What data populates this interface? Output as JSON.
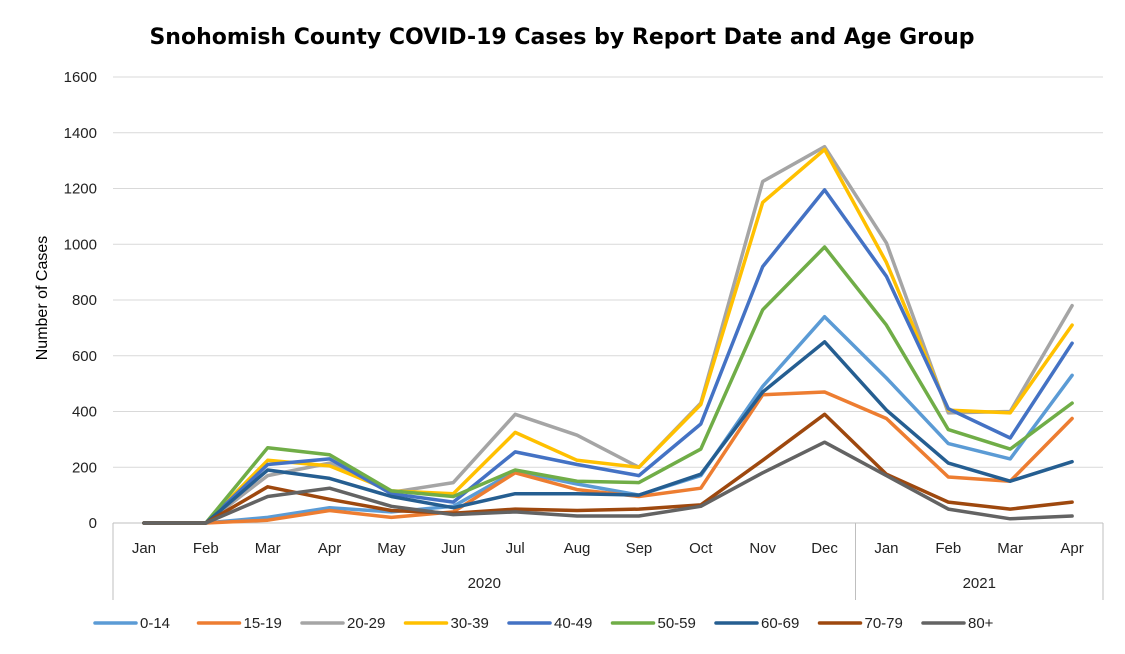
{
  "chart_data": {
    "type": "line",
    "title": "Snohomish County COVID-19 Cases by Report Date and Age Group",
    "xlabel": "",
    "ylabel": "Number of Cases",
    "ylim": [
      0,
      1600
    ],
    "yticks": [
      0,
      200,
      400,
      600,
      800,
      1000,
      1200,
      1400,
      1600
    ],
    "grid": true,
    "legend_position": "bottom",
    "categories": [
      "Jan",
      "Feb",
      "Mar",
      "Apr",
      "May",
      "Jun",
      "Jul",
      "Aug",
      "Sep",
      "Oct",
      "Nov",
      "Dec",
      "Jan",
      "Feb",
      "Mar",
      "Apr"
    ],
    "year_groups": [
      {
        "label": "2020",
        "start": 0,
        "end": 11
      },
      {
        "label": "2021",
        "start": 12,
        "end": 15
      }
    ],
    "series": [
      {
        "name": "0-14",
        "color": "#5B9BD5",
        "values": [
          0,
          0,
          20,
          55,
          40,
          60,
          185,
          140,
          100,
          170,
          490,
          740,
          520,
          285,
          230,
          530
        ]
      },
      {
        "name": "15-19",
        "color": "#ED7D31",
        "values": [
          0,
          0,
          10,
          45,
          20,
          40,
          180,
          120,
          95,
          125,
          460,
          470,
          375,
          165,
          150,
          375
        ]
      },
      {
        "name": "20-29",
        "color": "#A5A5A5",
        "values": [
          0,
          0,
          170,
          215,
          110,
          145,
          390,
          315,
          200,
          430,
          1225,
          1350,
          1005,
          395,
          400,
          780
        ]
      },
      {
        "name": "30-39",
        "color": "#FFC000",
        "values": [
          0,
          0,
          225,
          205,
          115,
          105,
          325,
          225,
          200,
          425,
          1150,
          1340,
          935,
          405,
          395,
          710
        ]
      },
      {
        "name": "40-49",
        "color": "#4472C4",
        "values": [
          0,
          0,
          210,
          230,
          105,
          75,
          255,
          210,
          170,
          355,
          920,
          1195,
          885,
          410,
          305,
          645
        ]
      },
      {
        "name": "50-59",
        "color": "#70AD47",
        "values": [
          0,
          0,
          270,
          245,
          115,
          95,
          190,
          150,
          145,
          265,
          765,
          990,
          710,
          335,
          265,
          430
        ]
      },
      {
        "name": "60-69",
        "color": "#255E91",
        "values": [
          0,
          0,
          190,
          160,
          95,
          55,
          105,
          105,
          100,
          175,
          470,
          650,
          405,
          215,
          150,
          220
        ]
      },
      {
        "name": "70-79",
        "color": "#9E480E",
        "values": [
          0,
          0,
          130,
          85,
          45,
          35,
          50,
          45,
          50,
          65,
          225,
          390,
          175,
          75,
          50,
          75
        ]
      },
      {
        "name": "80+",
        "color": "#636363",
        "values": [
          0,
          0,
          95,
          125,
          60,
          30,
          40,
          25,
          25,
          60,
          180,
          290,
          170,
          50,
          15,
          25
        ]
      }
    ]
  }
}
